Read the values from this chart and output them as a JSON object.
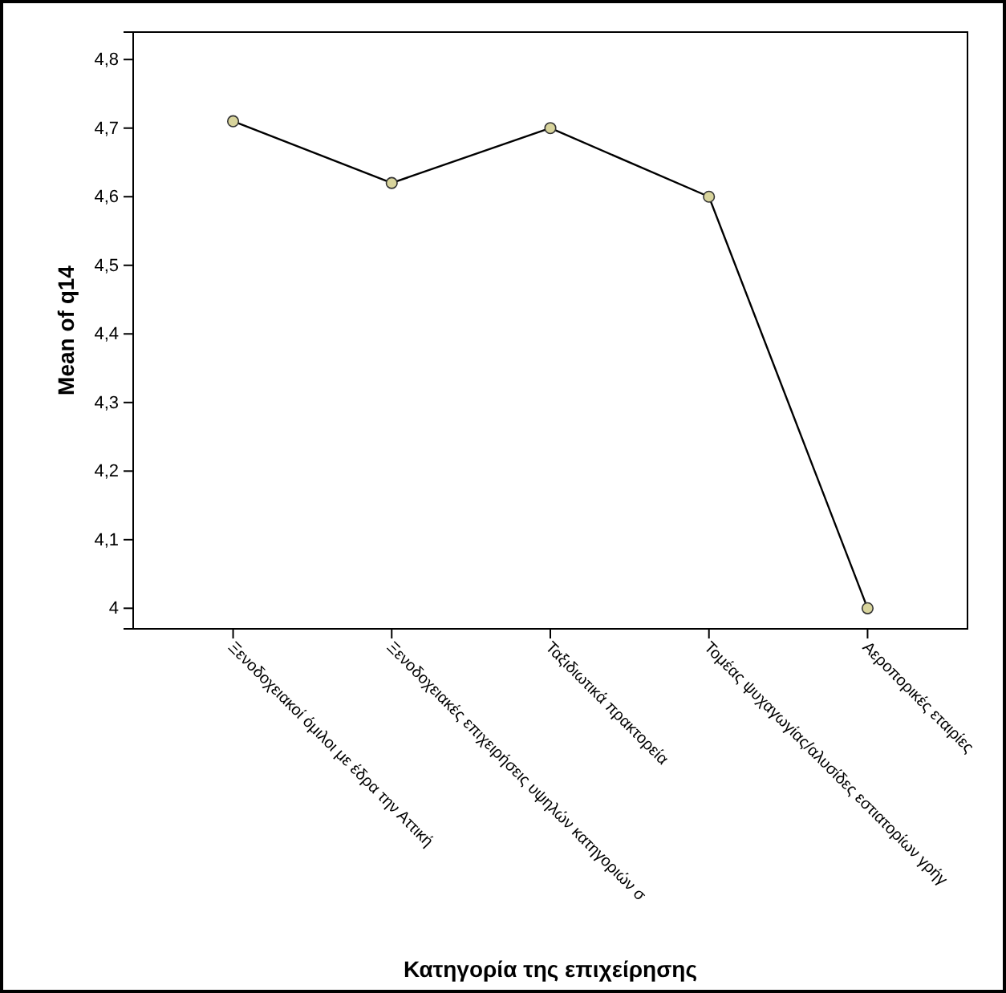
{
  "chart_data": {
    "type": "line",
    "xlabel": "Κατηγορία της επιχείρησης",
    "ylabel": "Mean of q14",
    "categories": [
      "Ξενοδοχειακοί όμιλοι με έδρα την Αττική",
      "Ξενοδοχειακές επιχειρήσεις υψηλών κατηγοριών σ",
      "Ταξιδιωτικά πρακτορεία",
      "Τομέας ψυχαγωγίας/αλυσίδες εστιατορίων γρήγ",
      "Αεροπορικές εταιρίες"
    ],
    "series": [
      {
        "color": "#000000",
        "values": [
          4.71,
          4.62,
          4.7,
          4.6,
          4.0
        ]
      }
    ],
    "marker": "circle",
    "ylim": [
      3.97,
      4.84
    ],
    "yticks": [
      {
        "value": 4,
        "label": "4"
      },
      {
        "value": 4.1,
        "label": "4,1"
      },
      {
        "value": 4.2,
        "label": "4,2"
      },
      {
        "value": 4.3,
        "label": "4,3"
      },
      {
        "value": 4.4,
        "label": "4,4"
      },
      {
        "value": 4.5,
        "label": "4,5"
      },
      {
        "value": 4.6,
        "label": "4,6"
      },
      {
        "value": 4.7,
        "label": "4,7"
      },
      {
        "value": 4.8,
        "label": "4,8"
      }
    ]
  }
}
